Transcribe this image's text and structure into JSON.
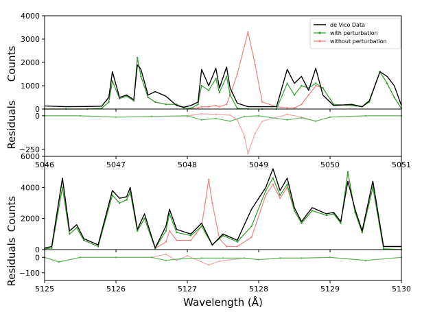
{
  "colors": {
    "data": "#000000",
    "with": "#2ca02c",
    "without": "#f08080",
    "with_residual": "#5cb85c",
    "without_residual": "#f4a6a6",
    "overlap": "#b07a5a"
  },
  "legend": {
    "entries": [
      "de Vico Data",
      "with perturbation",
      "without perturbation"
    ],
    "placement": "top-right"
  },
  "chart_data": [
    {
      "type": "line",
      "panel": "top",
      "ylabel_counts": "Counts",
      "ylabel_residuals": "Residuals",
      "xlim": [
        5046,
        5051
      ],
      "ylim_counts": [
        0,
        4000
      ],
      "ylim_residuals": [
        -300,
        50
      ],
      "xticks": [
        "5046",
        "5047",
        "5048",
        "5049",
        "5050",
        "5051"
      ],
      "yticks_counts": [
        "0",
        "1000",
        "2000",
        "3000",
        "4000"
      ],
      "yticks_residuals": [
        "0",
        "−250"
      ],
      "series": [
        {
          "name": "de Vico Data",
          "x": [
            5046,
            5046.3,
            5046.6,
            5046.8,
            5046.9,
            5046.95,
            5047.05,
            5047.15,
            5047.25,
            5047.3,
            5047.35,
            5047.45,
            5047.55,
            5047.7,
            5047.85,
            5047.95,
            5048.05,
            5048.15,
            5048.2,
            5048.3,
            5048.4,
            5048.45,
            5048.55,
            5048.6,
            5048.7,
            5048.85,
            5049.05,
            5049.25,
            5049.4,
            5049.5,
            5049.6,
            5049.7,
            5049.8,
            5049.9,
            5050.05,
            5050.3,
            5050.45,
            5050.55,
            5050.7,
            5050.8,
            5050.9,
            5051
          ],
          "values": [
            130,
            100,
            110,
            120,
            500,
            1600,
            500,
            600,
            400,
            1900,
            1700,
            600,
            750,
            550,
            150,
            80,
            150,
            300,
            1700,
            1000,
            1750,
            900,
            1800,
            900,
            250,
            100,
            100,
            100,
            1700,
            1100,
            1400,
            800,
            1750,
            600,
            150,
            200,
            100,
            350,
            1600,
            1400,
            1000,
            150
          ]
        },
        {
          "name": "with perturbation",
          "x": [
            5046,
            5046.3,
            5046.6,
            5046.8,
            5046.9,
            5046.95,
            5047.05,
            5047.15,
            5047.25,
            5047.3,
            5047.35,
            5047.45,
            5047.55,
            5047.7,
            5047.85,
            5047.95,
            5048.05,
            5048.15,
            5048.2,
            5048.3,
            5048.4,
            5048.45,
            5048.55,
            5048.6,
            5048.7,
            5048.85,
            5049.05,
            5049.25,
            5049.4,
            5049.5,
            5049.6,
            5049.7,
            5049.8,
            5049.9,
            5050.05,
            5050.3,
            5050.45,
            5050.55,
            5050.7,
            5050.8,
            5050.9,
            5051
          ],
          "values": [
            0,
            0,
            0,
            30,
            300,
            1200,
            450,
            550,
            350,
            2200,
            1400,
            500,
            300,
            200,
            200,
            50,
            30,
            200,
            1000,
            800,
            1300,
            700,
            1400,
            600,
            30,
            0,
            0,
            0,
            1100,
            600,
            1000,
            900,
            1100,
            900,
            200,
            150,
            100,
            300,
            1600,
            1100,
            500,
            30
          ]
        },
        {
          "name": "without perturbation",
          "x": [
            5046,
            5046.3,
            5046.6,
            5046.8,
            5046.9,
            5046.95,
            5047.05,
            5047.15,
            5047.25,
            5047.3,
            5047.35,
            5047.45,
            5047.55,
            5047.7,
            5047.85,
            5047.95,
            5048.05,
            5048.15,
            5048.2,
            5048.3,
            5048.4,
            5048.45,
            5048.55,
            5048.6,
            5048.7,
            5048.85,
            5048.95,
            5049.05,
            5049.25,
            5049.4,
            5049.5,
            5049.6,
            5049.7,
            5049.8,
            5049.9,
            5050.05,
            5050.3,
            5050.45,
            5050.55,
            5050.7,
            5050.8,
            5050.9,
            5051
          ],
          "values": [
            0,
            0,
            0,
            30,
            300,
            1200,
            450,
            550,
            350,
            2200,
            1400,
            500,
            300,
            200,
            200,
            50,
            30,
            50,
            100,
            100,
            150,
            100,
            200,
            600,
            1500,
            3300,
            1900,
            300,
            100,
            50,
            50,
            200,
            600,
            1000,
            900,
            200,
            150,
            100,
            300,
            1600,
            1100,
            500,
            30
          ]
        },
        {
          "name": "with perturbation residual",
          "x": [
            5046,
            5046.5,
            5047,
            5047.5,
            5048,
            5048.2,
            5048.4,
            5048.6,
            5048.8,
            5049,
            5049.4,
            5049.6,
            5049.8,
            5050,
            5050.5,
            5051
          ],
          "values": [
            0,
            0,
            -10,
            -5,
            0,
            -30,
            -20,
            -40,
            -5,
            0,
            -30,
            -15,
            -40,
            -10,
            0,
            0
          ]
        },
        {
          "name": "without perturbation residual",
          "x": [
            5046,
            5046.5,
            5047,
            5047.5,
            5048,
            5048.2,
            5048.4,
            5048.6,
            5048.7,
            5048.8,
            5048.85,
            5048.95,
            5049.05,
            5049.4,
            5049.6,
            5049.8,
            5050,
            5050.5,
            5051
          ],
          "values": [
            0,
            0,
            -10,
            -5,
            0,
            15,
            10,
            5,
            -30,
            -150,
            -280,
            -130,
            -40,
            10,
            -10,
            -40,
            -10,
            0,
            0
          ]
        }
      ]
    },
    {
      "type": "line",
      "panel": "bottom",
      "xlabel": "Wavelength (Å)",
      "ylabel_counts": "Counts",
      "ylabel_residuals": "Residuals",
      "xlim": [
        5125,
        5130
      ],
      "ylim_counts": [
        0,
        6000
      ],
      "ylim_residuals": [
        -150,
        50
      ],
      "xticks": [
        "5125",
        "5126",
        "5127",
        "5128",
        "5129",
        "5130"
      ],
      "yticks_counts": [
        "0",
        "2000",
        "4000",
        "6000"
      ],
      "yticks_residuals": [
        "0",
        "−100"
      ],
      "series": [
        {
          "name": "de Vico Data",
          "x": [
            5125,
            5125.1,
            5125.25,
            5125.35,
            5125.45,
            5125.55,
            5125.75,
            5125.95,
            5126.05,
            5126.15,
            5126.2,
            5126.3,
            5126.4,
            5126.55,
            5126.7,
            5126.75,
            5126.85,
            5127.05,
            5127.2,
            5127.35,
            5127.5,
            5127.7,
            5127.9,
            5128.1,
            5128.2,
            5128.3,
            5128.4,
            5128.5,
            5128.6,
            5128.75,
            5128.95,
            5129.05,
            5129.15,
            5129.25,
            5129.35,
            5129.45,
            5129.6,
            5129.75,
            5130
          ],
          "values": [
            100,
            200,
            4600,
            1200,
            1600,
            700,
            300,
            3800,
            3300,
            3400,
            4000,
            1300,
            2300,
            100,
            1500,
            2600,
            1300,
            1000,
            1700,
            300,
            1000,
            600,
            2600,
            4000,
            5200,
            3800,
            4600,
            2700,
            1800,
            2700,
            2300,
            2400,
            1800,
            4400,
            2600,
            1200,
            4400,
            200,
            200
          ]
        },
        {
          "name": "with perturbation",
          "x": [
            5125,
            5125.1,
            5125.25,
            5125.35,
            5125.45,
            5125.55,
            5125.75,
            5125.95,
            5126.05,
            5126.15,
            5126.2,
            5126.3,
            5126.4,
            5126.55,
            5126.7,
            5126.75,
            5126.85,
            5127.05,
            5127.2,
            5127.35,
            5127.5,
            5127.7,
            5127.9,
            5128.1,
            5128.2,
            5128.3,
            5128.4,
            5128.5,
            5128.6,
            5128.75,
            5128.95,
            5129.05,
            5129.15,
            5129.25,
            5129.35,
            5129.45,
            5129.6,
            5129.75,
            5130
          ],
          "values": [
            50,
            100,
            4000,
            1000,
            1400,
            600,
            200,
            3500,
            3000,
            3200,
            3700,
            1200,
            2000,
            80,
            1200,
            2300,
            1100,
            900,
            1500,
            300,
            900,
            500,
            1500,
            3800,
            4600,
            3500,
            4200,
            2500,
            1700,
            2500,
            2200,
            2300,
            1700,
            5000,
            2400,
            1100,
            4000,
            50,
            0
          ]
        },
        {
          "name": "without perturbation",
          "x": [
            5125,
            5125.1,
            5125.25,
            5125.35,
            5125.45,
            5125.55,
            5125.75,
            5125.95,
            5126.05,
            5126.15,
            5126.2,
            5126.3,
            5126.4,
            5126.55,
            5126.7,
            5126.75,
            5126.85,
            5127.05,
            5127.2,
            5127.3,
            5127.35,
            5127.45,
            5127.55,
            5127.7,
            5127.9,
            5128.1,
            5128.2,
            5128.3,
            5128.4,
            5128.5,
            5128.6,
            5128.75,
            5128.95,
            5129.05,
            5129.15,
            5129.25,
            5129.35,
            5129.45,
            5129.6,
            5129.75,
            5130
          ],
          "values": [
            50,
            100,
            4000,
            1000,
            1400,
            600,
            200,
            3500,
            3000,
            3200,
            3700,
            1200,
            2000,
            80,
            500,
            1200,
            600,
            600,
            1500,
            4500,
            3000,
            700,
            200,
            200,
            800,
            3500,
            4200,
            3300,
            4000,
            2500,
            1700,
            2500,
            2200,
            2300,
            1700,
            5000,
            2400,
            1100,
            4000,
            50,
            0
          ]
        },
        {
          "name": "with perturbation residual",
          "x": [
            5125,
            5125.2,
            5125.5,
            5126,
            5126.5,
            5126.7,
            5126.9,
            5127.2,
            5127.5,
            5127.8,
            5128,
            5128.3,
            5128.6,
            5129,
            5129.5,
            5130
          ],
          "values": [
            0,
            -30,
            0,
            0,
            0,
            -20,
            -10,
            -5,
            -5,
            -5,
            -15,
            -5,
            -5,
            0,
            -20,
            0
          ]
        },
        {
          "name": "without perturbation residual",
          "x": [
            5125,
            5125.2,
            5125.5,
            5126,
            5126.5,
            5126.7,
            5126.85,
            5127.0,
            5127.3,
            5127.45,
            5127.8,
            5128,
            5128.3,
            5128.6,
            5129,
            5129.5,
            5130
          ],
          "values": [
            0,
            -30,
            0,
            0,
            0,
            20,
            -20,
            10,
            -50,
            -25,
            -5,
            -15,
            -5,
            -5,
            0,
            -20,
            0
          ]
        }
      ]
    }
  ]
}
